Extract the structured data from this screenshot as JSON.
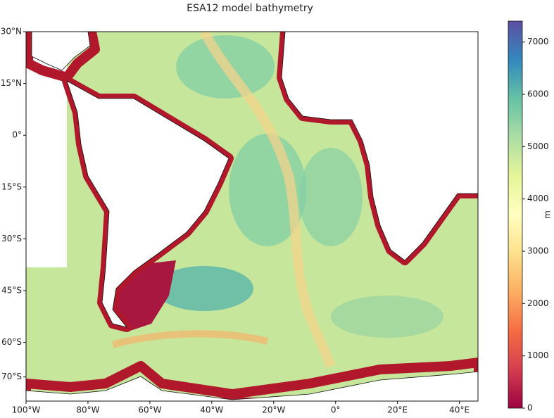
{
  "chart_data": {
    "type": "map",
    "title": "ESA12 model bathymetry",
    "xlim": [
      -100,
      46
    ],
    "ylim": [
      -77,
      30
    ],
    "xticks": [
      {
        "value": -100,
        "label": "100°W"
      },
      {
        "value": -80,
        "label": "80°W"
      },
      {
        "value": -60,
        "label": "60°W"
      },
      {
        "value": -40,
        "label": "40°W"
      },
      {
        "value": -20,
        "label": "20°W"
      },
      {
        "value": 0,
        "label": "0°"
      },
      {
        "value": 20,
        "label": "20°E"
      },
      {
        "value": 40,
        "label": "40°E"
      }
    ],
    "yticks": [
      {
        "value": 30,
        "label": "30°N"
      },
      {
        "value": 15,
        "label": "15°N"
      },
      {
        "value": 0,
        "label": "0°"
      },
      {
        "value": -15,
        "label": "15°S"
      },
      {
        "value": -30,
        "label": "30°S"
      },
      {
        "value": -45,
        "label": "45°S"
      },
      {
        "value": -60,
        "label": "60°S"
      },
      {
        "value": -70,
        "label": "70°S"
      }
    ],
    "colorbar": {
      "label": "m",
      "lim": [
        0,
        7400
      ],
      "ticks": [
        0,
        1000,
        2000,
        3000,
        4000,
        5000,
        6000,
        7000
      ],
      "colormap": [
        "#9e0142",
        "#d53e4f",
        "#f46d43",
        "#fdae61",
        "#fee08b",
        "#ffffbf",
        "#e6f598",
        "#abdda4",
        "#66c2a5",
        "#3288bd",
        "#5e4fa2"
      ]
    }
  }
}
